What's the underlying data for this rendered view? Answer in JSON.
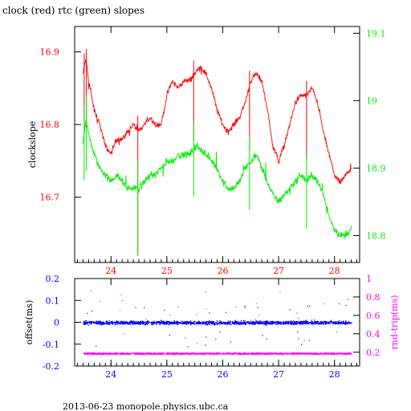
{
  "chart_data": [
    {
      "type": "line",
      "title": "clock (red) rtc (green) slopes",
      "xlabel": "",
      "ylabel": "clockslope",
      "ylabel_right": "",
      "xlim": [
        23.35,
        28.45
      ],
      "xticks": [
        24,
        25,
        26,
        27,
        28
      ],
      "ylim": [
        16.61,
        16.935
      ],
      "yticks": [
        16.7,
        16.8,
        16.9
      ],
      "ylim_right": [
        18.76,
        19.11
      ],
      "yticks_right": [
        18.8,
        18.9,
        19.0,
        19.1
      ],
      "ytick_labels_right": [
        "18.8",
        "18.9",
        "19",
        "19.1"
      ],
      "grid": false,
      "series": [
        {
          "name": "clock",
          "axis": "left",
          "color": "#ff0000",
          "x": [
            23.5,
            23.55,
            23.6,
            23.7,
            23.8,
            23.9,
            24.0,
            24.1,
            24.2,
            24.3,
            24.4,
            24.5,
            24.6,
            24.7,
            24.8,
            24.9,
            25.0,
            25.1,
            25.2,
            25.3,
            25.4,
            25.5,
            25.6,
            25.7,
            25.8,
            25.9,
            26.0,
            26.1,
            26.2,
            26.3,
            26.4,
            26.5,
            26.6,
            26.7,
            26.8,
            26.9,
            27.0,
            27.1,
            27.2,
            27.3,
            27.4,
            27.5,
            27.6,
            27.7,
            27.8,
            27.9,
            28.0,
            28.1,
            28.2,
            28.3
          ],
          "y": [
            16.87,
            16.89,
            16.86,
            16.82,
            16.8,
            16.77,
            16.76,
            16.78,
            16.78,
            16.79,
            16.8,
            16.79,
            16.8,
            16.81,
            16.8,
            16.8,
            16.84,
            16.86,
            16.85,
            16.86,
            16.86,
            16.87,
            16.88,
            16.87,
            16.85,
            16.82,
            16.8,
            16.79,
            16.8,
            16.81,
            16.83,
            16.86,
            16.87,
            16.86,
            16.82,
            16.77,
            16.75,
            16.77,
            16.8,
            16.83,
            16.84,
            16.84,
            16.85,
            16.83,
            16.79,
            16.76,
            16.73,
            16.72,
            16.73,
            16.74
          ]
        },
        {
          "name": "rtc",
          "axis": "right",
          "color": "#00ee00",
          "x": [
            23.5,
            23.55,
            23.6,
            23.7,
            23.8,
            23.9,
            24.0,
            24.1,
            24.2,
            24.3,
            24.4,
            24.5,
            24.6,
            24.7,
            24.8,
            24.9,
            25.0,
            25.1,
            25.2,
            25.3,
            25.4,
            25.5,
            25.6,
            25.7,
            25.8,
            25.9,
            26.0,
            26.1,
            26.2,
            26.3,
            26.4,
            26.5,
            26.6,
            26.7,
            26.8,
            26.9,
            27.0,
            27.1,
            27.2,
            27.3,
            27.4,
            27.5,
            27.6,
            27.7,
            27.8,
            27.9,
            28.0,
            28.1,
            28.2,
            28.3
          ],
          "y": [
            18.94,
            18.97,
            18.95,
            18.92,
            18.9,
            18.89,
            18.88,
            18.89,
            18.88,
            18.87,
            18.87,
            18.87,
            18.88,
            18.89,
            18.89,
            18.9,
            18.91,
            18.91,
            18.92,
            18.92,
            18.92,
            18.93,
            18.93,
            18.92,
            18.91,
            18.9,
            18.88,
            18.87,
            18.87,
            18.88,
            18.9,
            18.91,
            18.92,
            18.9,
            18.88,
            18.86,
            18.85,
            18.86,
            18.87,
            18.88,
            18.89,
            18.88,
            18.89,
            18.88,
            18.86,
            18.83,
            18.81,
            18.8,
            18.8,
            18.81
          ]
        }
      ]
    },
    {
      "type": "scatter",
      "title": "",
      "xlabel": "",
      "ylabel": "offset(ms)",
      "ylabel_right": "rnd-trip(ms)",
      "xlim": [
        23.35,
        28.45
      ],
      "xticks": [
        24,
        25,
        26,
        27,
        28
      ],
      "ylim": [
        -0.2,
        0.2
      ],
      "yticks": [
        -0.2,
        -0.1,
        0,
        0.1,
        0.2
      ],
      "ylim_right": [
        0.05,
        1.0
      ],
      "yticks_right": [
        0.2,
        0.4,
        0.6,
        0.8,
        1.0
      ],
      "ytick_labels_right": [
        "0.2",
        "0.4",
        "0.6",
        "0.8",
        "1"
      ],
      "grid": false,
      "series": [
        {
          "name": "offset",
          "axis": "left",
          "color": "#0000ff",
          "x_range": [
            23.5,
            28.3
          ],
          "y_center": 0.0,
          "y_spread": 0.012
        },
        {
          "name": "rnd-trip",
          "axis": "right",
          "color": "#ff00ff",
          "x_range": [
            23.5,
            28.3
          ],
          "y_center": 0.19,
          "y_spread": 0.012
        }
      ]
    }
  ],
  "footer": "2013-06-23  monopole.physics.ubc.ca",
  "colors": {
    "axis": "#000000",
    "clock": "#ff0000",
    "rtc": "#00ee00",
    "offset": "#0000ff",
    "rndtrip": "#ff00ff"
  }
}
